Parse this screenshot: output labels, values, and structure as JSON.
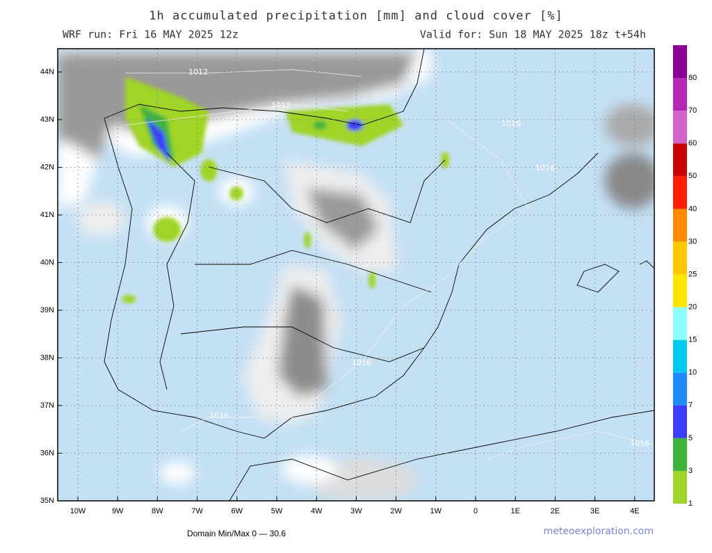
{
  "header": {
    "title": "1h accumulated precipitation [mm] and cloud cover [%]",
    "run": "WRF run: Fri 16 MAY 2025 12z",
    "valid": "Valid for: Sun 18 MAY 2025 18z  t+54h"
  },
  "map": {
    "lat_labels": [
      "44N",
      "43N",
      "42N",
      "41N",
      "40N",
      "39N",
      "38N",
      "37N",
      "36N",
      "35N"
    ],
    "lon_labels": [
      "10W",
      "9W",
      "8W",
      "7W",
      "6W",
      "5W",
      "4W",
      "3W",
      "2W",
      "1W",
      "0",
      "1E",
      "2E",
      "3E",
      "4E"
    ],
    "isobar_labels": [
      "1012",
      "1012",
      "1016",
      "1016",
      "1016",
      "1016",
      "1016"
    ]
  },
  "colorbar": {
    "labels": [
      "1",
      "3",
      "5",
      "7",
      "10",
      "15",
      "20",
      "25",
      "30",
      "40",
      "50",
      "60",
      "70",
      "80"
    ],
    "colors": [
      "#a0d428",
      "#3cb43c",
      "#3c3cff",
      "#1e8cff",
      "#00c8f0",
      "#8cffff",
      "#ffe600",
      "#ffc800",
      "#ff8c00",
      "#ff1e00",
      "#c80000",
      "#d264c8",
      "#b428b4",
      "#8c0096"
    ]
  },
  "footer": {
    "domain": "Domain Min/Max 0 — 30.6",
    "site": "meteoexploration.com"
  }
}
